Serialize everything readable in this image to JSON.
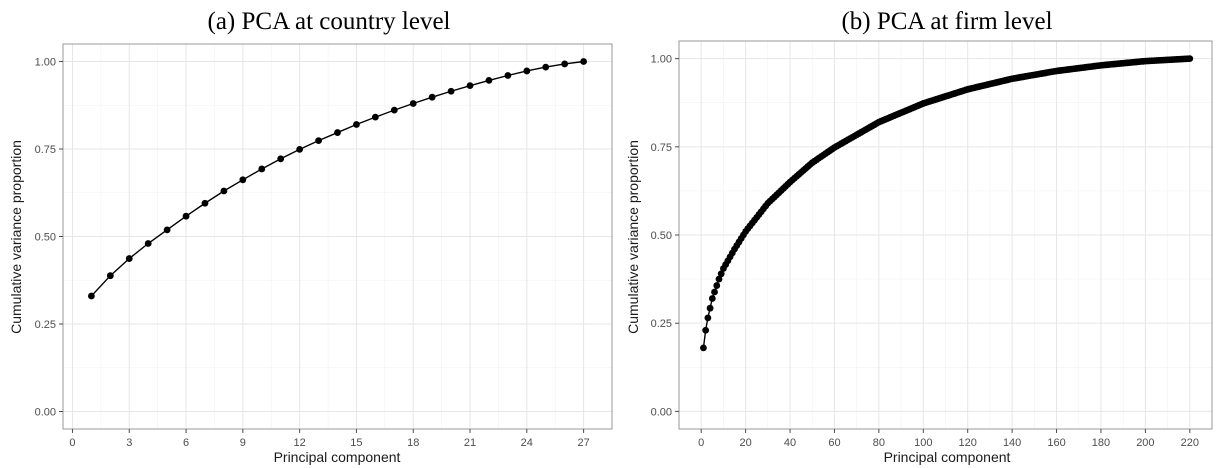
{
  "chart_data": [
    {
      "type": "line",
      "title": "(a) PCA at country level",
      "xlabel": "Principal component",
      "ylabel": "Cumulative variance proportion",
      "xlim": [
        -0.5,
        28.5
      ],
      "ylim": [
        -0.05,
        1.05
      ],
      "xticks": [
        0,
        3,
        6,
        9,
        12,
        15,
        18,
        21,
        24,
        27
      ],
      "yticks": [
        0.0,
        0.25,
        0.5,
        0.75,
        1.0
      ],
      "ytick_labels": [
        "0.00",
        "0.25",
        "0.50",
        "0.75",
        "1.00"
      ],
      "grid": true,
      "series": [
        {
          "x": [
            1,
            2,
            3,
            4,
            5,
            6,
            7,
            8,
            9,
            10,
            11,
            12,
            13,
            14,
            15,
            16,
            17,
            18,
            19,
            20,
            21,
            22,
            23,
            24,
            25,
            26,
            27
          ],
          "values": [
            0.33,
            0.388,
            0.437,
            0.48,
            0.519,
            0.558,
            0.595,
            0.63,
            0.662,
            0.693,
            0.722,
            0.749,
            0.774,
            0.797,
            0.82,
            0.841,
            0.861,
            0.88,
            0.898,
            0.915,
            0.931,
            0.946,
            0.96,
            0.973,
            0.984,
            0.993,
            1.0
          ]
        }
      ]
    },
    {
      "type": "line",
      "title": "(b) PCA at firm level",
      "xlabel": "Principal component",
      "ylabel": "Cumulative variance proportion",
      "xlim": [
        -10,
        230
      ],
      "ylim": [
        -0.05,
        1.05
      ],
      "xticks": [
        0,
        20,
        40,
        60,
        80,
        100,
        120,
        140,
        160,
        180,
        200,
        220
      ],
      "yticks": [
        0.0,
        0.25,
        0.5,
        0.75,
        1.0
      ],
      "ytick_labels": [
        "0.00",
        "0.25",
        "0.50",
        "0.75",
        "1.00"
      ],
      "grid": true,
      "series": [
        {
          "x_start": 1,
          "x_end": 220,
          "anchors_x": [
            1,
            2,
            3,
            5,
            8,
            10,
            15,
            20,
            30,
            40,
            50,
            60,
            80,
            100,
            120,
            140,
            160,
            180,
            200,
            220
          ],
          "anchors_y": [
            0.18,
            0.23,
            0.265,
            0.32,
            0.375,
            0.405,
            0.46,
            0.51,
            0.59,
            0.65,
            0.705,
            0.748,
            0.82,
            0.873,
            0.913,
            0.943,
            0.965,
            0.981,
            0.993,
            1.0
          ]
        }
      ]
    }
  ]
}
